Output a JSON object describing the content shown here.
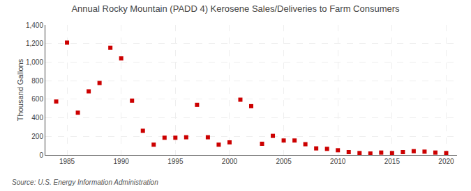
{
  "chart_data": {
    "type": "scatter",
    "title": "Annual Rocky Mountain (PADD 4) Kerosene Sales/Deliveries to Farm Consumers",
    "ylabel": "Thousand Gallons",
    "annotations": [
      {
        "text": "Source: U.S. Energy Information Administration"
      }
    ],
    "x": [
      1984,
      1985,
      1986,
      1987,
      1988,
      1989,
      1990,
      1991,
      1992,
      1993,
      1994,
      1995,
      1996,
      1997,
      1998,
      1999,
      2000,
      2001,
      2002,
      2003,
      2004,
      2005,
      2006,
      2007,
      2008,
      2009,
      2010,
      2011,
      2012,
      2013,
      2014,
      2015,
      2016,
      2017,
      2018,
      2019,
      2020
    ],
    "values": [
      575,
      1210,
      455,
      685,
      775,
      1155,
      1040,
      585,
      260,
      110,
      185,
      185,
      190,
      540,
      190,
      110,
      135,
      595,
      525,
      120,
      205,
      155,
      155,
      115,
      70,
      65,
      50,
      30,
      20,
      15,
      25,
      20,
      30,
      40,
      35,
      25,
      20
    ],
    "color": "#cc0000",
    "marker": "square",
    "xlim": [
      1983,
      2021
    ],
    "xticks": [
      1985,
      1990,
      1995,
      2000,
      2005,
      2010,
      2015,
      2020
    ],
    "ylim": [
      0,
      1400
    ],
    "yticks": [
      0,
      200,
      400,
      600,
      800,
      {
        "value": 1000,
        "label": "1,000"
      },
      {
        "value": 1200,
        "label": "1,200"
      },
      {
        "value": 1400,
        "label": "1,400"
      }
    ],
    "grid": true
  }
}
